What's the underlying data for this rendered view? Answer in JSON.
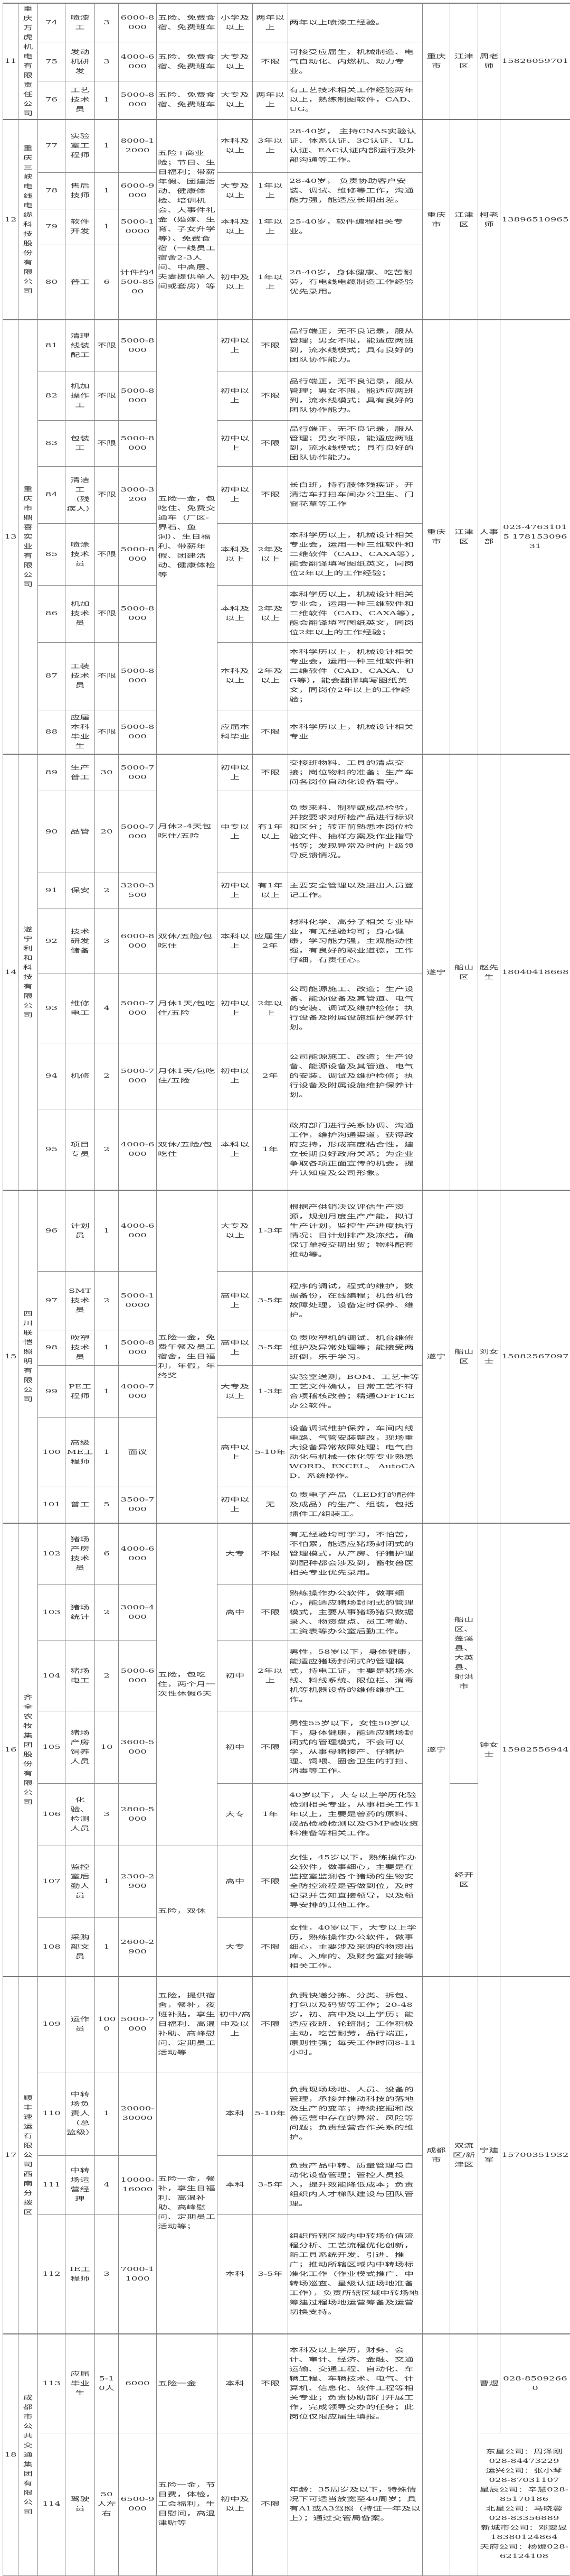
{
  "groups": [
    {
      "no": "11",
      "company": "重庆万虎机电有限责任公司",
      "benefits": [
        {
          "span": 1,
          "text": "五险、免费食宿、免费班车"
        },
        {
          "span": 1,
          "text": "五险、免费食宿、免费班车"
        },
        {
          "span": 1,
          "text": "五险、免费食宿、免费班车"
        }
      ],
      "city": "重庆市",
      "districts": [
        {
          "span": 3,
          "text": "江津区"
        }
      ],
      "contacts": [
        {
          "span": 3,
          "contact": "周老师",
          "phone": "15826059701"
        }
      ],
      "rows": [
        {
          "no": "74",
          "pos": "喷漆工",
          "count": "3",
          "salary": "6000-8000",
          "edu": "小学及以上",
          "exp": "两年以上",
          "req": "两年以上喷漆工经验。"
        },
        {
          "no": "75",
          "pos": "发动机研发",
          "count": "3",
          "salary": "4000-6000",
          "edu": "大专及以上",
          "exp": "不限",
          "req": "可接受应届生，机械制造、电气自动化、内燃机、动力专业。"
        },
        {
          "no": "76",
          "pos": "工艺技术员",
          "count": "1",
          "salary": "5000-8000",
          "edu": "大专及以上",
          "exp": "两年以上",
          "req": "有工艺技术相关工作经验两年以上，熟练制图软件，CAD、UG。"
        }
      ]
    },
    {
      "no": "12",
      "company": "重庆三峡电线电缆科技股份有限公司",
      "benefits": [
        {
          "span": 4,
          "text": "五险+商业险；节日、生日福利；带薪年假、团建活动、健康体检、培训机会、大事件礼金（婚嫁、生育、子女升学等）、免费食宿（一线员工宿舍2-3人间、中高层、夫妻提供单人间或套房）等"
        }
      ],
      "city": "重庆市",
      "districts": [
        {
          "span": 4,
          "text": "江津区"
        }
      ],
      "contacts": [
        {
          "span": 4,
          "contact": "柯老师",
          "phone": "13896510965"
        }
      ],
      "rows": [
        {
          "no": "77",
          "pos": "实验室工程师",
          "count": "1",
          "salary": "8000-12000",
          "edu": "本科及以上",
          "exp": "3年以上",
          "req": "28-40岁， 主持CNAS实验认证、体系认证、3C认证、UL认证、EAC认证内部运行及外部沟通等工作。"
        },
        {
          "no": "78",
          "pos": "售后技师",
          "count": "1",
          "salary": "6000-9000",
          "edu": "大专及以上",
          "exp": "1年以上",
          "req": "28-40岁， 负责协助客户安装、调试、维修等工作，沟通能力强，能适应长期出差。"
        },
        {
          "no": "79",
          "pos": "软件开发",
          "count": "1",
          "salary": "5000-10000",
          "edu": "本科及以上",
          "exp": "1年以上",
          "req": "25-40岁，软件编程相关专业。"
        },
        {
          "no": "80",
          "pos": "普工",
          "count": "6",
          "salary": "计件约4500-8500",
          "edu": "初中及以上",
          "exp": "1年以上",
          "req": "28-40岁，身体健康、吃苦耐劳，有电线电缆制造工作经验优先录用。"
        }
      ]
    },
    {
      "no": "13",
      "company": "重庆市鼎喜实业有限公司",
      "benefits": [
        {
          "span": 8,
          "text": "五险一金，包吃住、免费交通车（厂区-界石、鱼洞）、生日福利、带薪年假、团建活动、健康体检等"
        }
      ],
      "city": "重庆市",
      "districts": [
        {
          "span": 8,
          "text": "江津区"
        }
      ],
      "contacts": [
        {
          "span": 8,
          "contact": "人事部",
          "phone": "023-47631015 17815309631"
        }
      ],
      "rows": [
        {
          "no": "81",
          "pos": "清理线装配工",
          "count": "不限",
          "salary": "5000-8000",
          "edu": "初中以上",
          "exp": "不限",
          "req": "品行端正，无不良记录，服从管理；男女不限，能适应两班到，流水线模式；具有良好的团队协作能力。"
        },
        {
          "no": "82",
          "pos": "机加操作工",
          "count": "不限",
          "salary": "5000-8000",
          "edu": "初中以上",
          "exp": "不限",
          "req": "品行端正，无不良记录，服从管理；男女不限，能适应两班到，流水线模式；具有良好的团队协作能力。"
        },
        {
          "no": "83",
          "pos": "包装工",
          "count": "不限",
          "salary": "5000-8000",
          "edu": "初中以上",
          "exp": "不限",
          "req": "品行端正，无不良记录，服从管理；男女不限，能适应两班到，流水线模式；具有良好的团队协作能力。"
        },
        {
          "no": "84",
          "pos": "清洁工（残疾人）",
          "count": "不限",
          "salary": "3000-3200",
          "edu": "初中以上",
          "exp": "不限",
          "req": "长白班，持有肢体残疾证，开清洁车打扫车间办公卫生、门窗花草等工作"
        },
        {
          "no": "85",
          "pos": "喷涂技术员",
          "count": "不限",
          "salary": "5000-8000",
          "edu": "本科及以上",
          "exp": "2年及以上",
          "req": "本科学历以上，机械设计相关专业会，运用一种三维软件和二维软件（CAD、CAXA等），能会翻译填写图纸英文，同岗位2年以上的工作经验；"
        },
        {
          "no": "86",
          "pos": "机加技术员",
          "count": "不限",
          "salary": "5000-8000",
          "edu": "本科及以上",
          "exp": "2年及以上",
          "req": "本科学历以上，机械设计相关专业会，运用一种三维软件和二维软件（CAD、CAXA等），能会翻译填写图纸英文，同岗位2年以上的工作经验；"
        },
        {
          "no": "87",
          "pos": "工装技术员",
          "count": "不限",
          "salary": "5000-8000",
          "edu": "本科及以上",
          "exp": "2年及以上",
          "req": "本科学历以上，机械设计相关专业会，运用一种三维软件和二维软件（CAD、CAXA、UG等），能会翻译填写图纸英文，同岗位2年以上的工作经验；"
        },
        {
          "no": "88",
          "pos": "应届本科毕业生",
          "count": "不限",
          "salary": "5000-8000",
          "edu": "应届本科毕业",
          "exp": "不限",
          "req": "本科学历以上，机械设计相关专业"
        }
      ]
    },
    {
      "no": "14",
      "company": "遂宁利和科技有限公司",
      "benefits": [
        {
          "span": 3,
          "text": "月休2-4天包吃住/五险"
        },
        {
          "span": 1,
          "text": "双休/五险/包吃住"
        },
        {
          "span": 1,
          "text": "月休1天/包吃住/五险"
        },
        {
          "span": 1,
          "text": "月休1天/包吃住/五险"
        },
        {
          "span": 1,
          "text": "双休/五险/包吃住"
        }
      ],
      "city": "遂宁",
      "districts": [
        {
          "span": 7,
          "text": "船山区"
        }
      ],
      "contacts": [
        {
          "span": 7,
          "contact": "赵先生",
          "phone": "18040418668"
        }
      ],
      "rows": [
        {
          "no": "89",
          "pos": "生产普工",
          "count": "30",
          "salary": "5000-7000",
          "edu": "初中以上",
          "exp": "不限",
          "req": "交接班物料、工具的清点交接；岗位物料的准备；生产车间各岗位自动化设备看守。"
        },
        {
          "no": "90",
          "pos": "品管",
          "count": "20",
          "salary": "5000-7000",
          "edu": "中专以上",
          "exp": "有1年以上",
          "req": "负责来料、制程或成品检验，并按要求对所检产品进行标识和区分；转正前熟悉本岗位检验文件、抽样方案及作业指导书等；发现异常及时向上级领导反馈情况。"
        },
        {
          "no": "91",
          "pos": "保安",
          "count": "2",
          "salary": "3200-3500",
          "edu": "初中以上",
          "exp": "有1年以上",
          "req": "主要安全管理以及进出人员登记工作。"
        },
        {
          "no": "92",
          "pos": "技术研发储备",
          "count": "3",
          "salary": "6000-8000",
          "edu": "本科以上",
          "exp": "应届生/2年",
          "req": "材料化学、高分子相关专业毕业，有无经验均可；身心健康，学习能力强，主观能动性强，有良好的职业道德，工作仔细，有责任心。"
        },
        {
          "no": "93",
          "pos": "维修电工",
          "count": "4",
          "salary": "5000-7000",
          "edu": "初中以上",
          "exp": "2年以上",
          "req": "公司能源施工、改造；生产设备、能源设备及其管道、电气的安装、调试及维护检修；执行设备及附属设施维护保养计划。"
        },
        {
          "no": "94",
          "pos": "机修",
          "count": "2",
          "salary": "5000-7000",
          "edu": "初中以上",
          "exp": "2年",
          "req": "公司能源施工、改造；生产设备、能源设备及其管道、电气的安装、调试及维护检修；执行设备及附属设施维护保养计划。"
        },
        {
          "no": "95",
          "pos": "项目专员",
          "count": "2",
          "salary": "4000-6000",
          "edu": "本科以上",
          "exp": "1年",
          "req": "政府部门进行关系协调、沟通工作，维护沟通渠道，获得政府支持，形成高度粘合性，建立长期良好政府关系；为企业争取各项正面宣传的机会，提升认知度及公司形象。"
        }
      ]
    },
    {
      "no": "15",
      "company": "四川联恺照明有限公司",
      "benefits": [
        {
          "span": 6,
          "text": "五险一金，免费午餐及员工宿舍，生日福利，年假，年终奖"
        }
      ],
      "city": "遂宁",
      "districts": [
        {
          "span": 6,
          "text": "船山区"
        }
      ],
      "contacts": [
        {
          "span": 6,
          "contact": "刘女士",
          "phone": "15082567097"
        }
      ],
      "rows": [
        {
          "no": "96",
          "pos": "计划员",
          "count": "1",
          "salary": "4000-6000",
          "edu": "大专及以上",
          "exp": "1-3年",
          "req": "根据产供销决议评估生产资源，规划月度生产产能，拟订生产计划，监控生产进度执行情况；日计划排产及冻结，确保订单按交期出货；物料配套推动等。"
        },
        {
          "no": "97",
          "pos": "SMT技术员",
          "count": "2",
          "salary": "5000-10000",
          "edu": "高中以上",
          "exp": "3-5年",
          "req": "程序的调试，程式的维护，数据备份，在线编程；机台机台故障处理，设备定时保养、维护。"
        },
        {
          "no": "98",
          "pos": "吹塑技术员",
          "count": "1",
          "salary": "5000-8000",
          "edu": "高中以上",
          "exp": "3-5年",
          "req": "负责吹塑机的调试、机台维修维护及异常处理等；能接受两班倒，乐于学习。"
        },
        {
          "no": "99",
          "pos": "PE工程师",
          "count": "1",
          "salary": "4000-7000",
          "edu": "大专及以上",
          "exp": "1-3年",
          "req": "实验室送测，BOM、工艺卡等工艺文件确认，日常工艺不符合项稽核改善；精通OFFICE办公软件。"
        },
        {
          "no": "100",
          "pos": "高级ME工程师",
          "count": "1",
          "salary": "面议",
          "edu": "高中以上",
          "exp": "5-10年",
          "req": "设备调试维护保养，车间内线电路、气管安装整改，现场重大设备异常故障处理；电气自动化与机械一体化等专业熟悉WORD、EXCEL、 AutoCAD、系统操作。"
        },
        {
          "no": "101",
          "pos": "普工",
          "count": "5",
          "salary": "3500-7000",
          "edu": "初中以上",
          "exp": "无",
          "req": "负责电子产品（LED灯的配件及成品）的生产、组装，包括插件工/组装工。"
        }
      ]
    },
    {
      "no": "16",
      "company": "齐全农牧集团股份有限公司",
      "benefits": [
        {
          "span": 5,
          "text": "五险，包吃住，两个月一次性休假6天"
        },
        {
          "span": 2,
          "text": "五险，双休"
        }
      ],
      "city": "遂宁",
      "districts": [
        {
          "span": 4,
          "text": "船山区、蓬溪县、大英县、射洪市"
        },
        {
          "span": 3,
          "text": "经开区"
        }
      ],
      "contacts": [
        {
          "span": 7,
          "contact": "钟女士",
          "phone": "15982556944"
        }
      ],
      "rows": [
        {
          "no": "102",
          "pos": "猪场产房技术员",
          "count": "6",
          "salary": "4000-6000",
          "edu": "大专",
          "exp": "不限",
          "req": "有无经验均可学习，不怕苦，不怕累，能适应猪场封闭式的管理模式，从产房、仔猪护理到配种都会涉及到，畜牧兽医相关专业优先录用。"
        },
        {
          "no": "103",
          "pos": "猪场统计",
          "count": "2",
          "salary": "3000-4000",
          "edu": "高中",
          "exp": "不限",
          "req": "熟练操作办公软件，做事细心，能适应猪场封闭式的管理模式，主要从事猪场猪只数据录入、物资盘点、员工考勤、工资表等办公室后勤工作。"
        },
        {
          "no": "104",
          "pos": "猪场电工",
          "count": "2",
          "salary": "5000-6000",
          "edu": "初中",
          "exp": "2年以上",
          "req": "男性，58岁以下，身体健康，能适应猪场封闭式的管理模式，持电工证，主要是猪场水线、料线系统、限位栏、消毒机等机器设备的维修维护工作。"
        },
        {
          "no": "105",
          "pos": "猪场产房饲养人员",
          "count": "10",
          "salary": "3600-5000",
          "edu": "初中",
          "exp": "不限",
          "req": "男性55岁以下，女性50岁以下，身体健康，能适应猪场封闭式的管理模式，不会可以学，从事母猪接产、仔猪护理、饲喂、圈舍卫生的打扫、消毒等工作。"
        },
        {
          "no": "106",
          "pos": "化验、检测人员",
          "count": "3",
          "salary": "2800-5000",
          "edu": "大专",
          "exp": "1年",
          "req": "40岁以下，大专以上学历化验检测相关专业，从事相关工作1年以上，主要是兽药的原料、成品检验检测以及GMP验收资料准备等相关工作。"
        },
        {
          "no": "107",
          "pos": "监控室后勤人员",
          "count": "1",
          "salary": "2300-2900",
          "edu": "高中",
          "exp": "不限",
          "req": "女性，45岁以下，熟练操作办公软件，做事细心，主要是在监控室监测各个猪场的生物安全防控流程是否做到位，及时记录并告知直接领导，以及领导安排的其他工作。"
        },
        {
          "no": "108",
          "pos": "采购部文员",
          "count": "1",
          "salary": "2600-2900",
          "edu": "大专",
          "exp": "不限",
          "req": "女性，40岁以下，大专以上学历，熟练操作办公软件，做事细心，主要涉及采购的物资出库、入库的、及财务室对接等相关工作。"
        }
      ]
    },
    {
      "no": "17",
      "company": "顺丰速运有限公司西南分拨区",
      "benefits": [
        {
          "span": 1,
          "text": "五险，提供宿舍，餐补，夜班补贴，享生日福利、高温补助、高峰慰问、定期员工活动等"
        },
        {
          "span": 3,
          "text": "五险一金，餐补，享生日福利、高温补助、高峰慰问、定期员工活动等；"
        }
      ],
      "city": "成都市",
      "districts": [
        {
          "span": 4,
          "text": "双流区/新津区"
        }
      ],
      "contacts": [
        {
          "span": 4,
          "contact": "宁建军",
          "phone": "15700351932"
        }
      ],
      "rows": [
        {
          "no": "109",
          "pos": "运作员",
          "count": "1000",
          "salary": "5000-7000",
          "edu": "初中/高中及以上",
          "exp": "不限",
          "req": "负责快递分拣、分类、拆包、打包以及码货等工作；20-48岁，初、高中及以上学历；能适应夜班、轮班制；工作积极主动，吃苦耐劳，品行端正，原则性强；每天工作时间8-11小时。"
        },
        {
          "no": "110",
          "pos": "中转场负责人（总监级）",
          "count": "1",
          "salary": "20000-30000",
          "edu": "本科",
          "exp": "5-10年",
          "req": "负责现场场地、人员、设备的管理，承接并推动科技的落地及生产的变革；持续挖掘和改善运营中存在的异常、风险等问题；负责经营合作关系的维护。"
        },
        {
          "no": "111",
          "pos": "中转场运营经理",
          "count": "4",
          "salary": "10000-16000",
          "edu": "本科",
          "exp": "3-5年",
          "req": "负责产品中转、质量管理与自动化设备管理；管控人员投入，提升效能降低成本；负责组织内人才梯队建设与团队管理。"
        },
        {
          "no": "112",
          "pos": "IE工程师",
          "count": "3",
          "salary": "7000-11000",
          "edu": "本科",
          "exp": "3-5年",
          "req": "组织所辖区域内中转场价值流程分析、工艺流程优化创新，新工具系统开发、引进、推广；推动所辖区域内中转场标准化工作（作业模式推广、中转场巡查、星级认证场地准备工作），负责所辖区域中转场地筹建过程场地运营筹备及运营切换支持。"
        }
      ]
    },
    {
      "no": "18",
      "company": "成都市公共交通集团有限公司",
      "benefits": [
        {
          "span": 1,
          "text": "五险一金"
        },
        {
          "span": 1,
          "text": "五险一金，节日费，体检，工会福利，生日慰问，高温津贴等"
        }
      ],
      "city": "",
      "districts": [
        {
          "span": 2,
          "text": ""
        }
      ],
      "contacts": [
        {
          "span": 1,
          "contact": "曹煜",
          "phone": "028-85092660"
        },
        {
          "span": 1,
          "lines": [
            "东星公司：周泽刚",
            "028-84473229",
            "运兴公司：张小琴",
            "028-87031107",
            "星辰公司：辛慧028-",
            "85170186",
            "北星公司：马晓蓉",
            "028-83356889",
            "新城市公司：邓雯昱",
            "18380124864",
            "天府公司：杨娜028-",
            "62124108"
          ]
        }
      ],
      "rows": [
        {
          "no": "113",
          "pos": "应届毕业生",
          "count": "5-10人",
          "salary": "6000",
          "edu": "本科",
          "exp": "不限",
          "req": "本科及以上学历，财务、会计、审计、经济、金融、交通运输、交通工程、自动化、车辆工程、车辆技术、电气、计算机、信息化、软件工程等相关专业；负责协助部门开展工作，完成领导交办的任务；此岗位仅限应届生填报。"
        },
        {
          "no": "114",
          "pos": "驾驶员",
          "count": "50人左右",
          "salary": "6500-9000",
          "edu": "初中及以上",
          "exp": "不限",
          "req": "年龄：35周岁及以下，特殊情况下可适当放宽至40周岁；具有A1或A3驾照（持证一年及以上）；通过交管局备案。"
        }
      ]
    }
  ]
}
